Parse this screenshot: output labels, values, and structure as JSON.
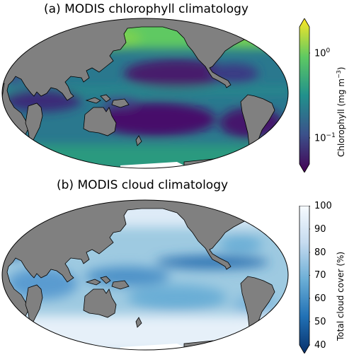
{
  "panels": [
    {
      "title": "(a) MODIS chlorophyll climatology",
      "colorbar": {
        "label_main": "Chlorophyll (mg m",
        "label_sup": "−3",
        "label_end": ")",
        "scale": "log",
        "colormap": "viridis",
        "extend": "both",
        "ticks": [
          {
            "base": "10",
            "exp": "0"
          },
          {
            "base": "10",
            "exp": "−1"
          }
        ]
      },
      "land_color": "#808080"
    },
    {
      "title": "(b) MODIS cloud climatology",
      "colorbar": {
        "label": "Total cloud cover (%)",
        "scale": "linear",
        "colormap": "Blues (reversed)",
        "extend": "min",
        "ticks": [
          "100",
          "90",
          "80",
          "70",
          "60",
          "50",
          "40"
        ]
      },
      "land_color": "#808080"
    }
  ],
  "colors": {
    "land": "#808080",
    "viridis": [
      "#440154",
      "#3b528b",
      "#21918c",
      "#5ec962",
      "#fde725"
    ],
    "blues": [
      "#08306b",
      "#2171b5",
      "#6baed6",
      "#c6dbef",
      "#f7fbff"
    ]
  }
}
